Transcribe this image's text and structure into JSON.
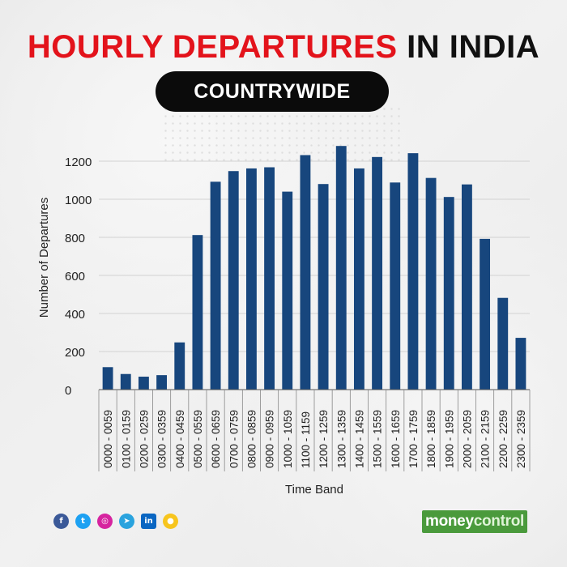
{
  "header": {
    "title_red": "HOURLY DEPARTURES",
    "title_black": "IN INDIA",
    "subtitle": "COUNTRYWIDE"
  },
  "colors": {
    "bar": "#17467d",
    "title_red": "#e3131b",
    "pill": "#0b0b0b",
    "brand_green": "#4a9a3c"
  },
  "footer": {
    "social_icons": [
      "facebook-icon",
      "twitter-icon",
      "instagram-icon",
      "telegram-icon",
      "linkedin-icon",
      "koo-icon"
    ],
    "brand_part1": "money",
    "brand_part2": "control"
  },
  "chart_data": {
    "type": "bar",
    "title": "HOURLY DEPARTURES IN INDIA",
    "subtitle": "COUNTRYWIDE",
    "xlabel": "Time Band",
    "ylabel": "Number of Departures",
    "ylim": [
      0,
      1200
    ],
    "yticks": [
      0,
      200,
      400,
      600,
      800,
      1000,
      1200
    ],
    "grid": true,
    "categories": [
      "0000 - 0059",
      "0100 - 0159",
      "0200 - 0259",
      "0300 - 0359",
      "0400 - 0459",
      "0500 - 0559",
      "0600 - 0659",
      "0700 - 0759",
      "0800 - 0859",
      "0900 - 0959",
      "1000 - 1059",
      "1100 - 1159",
      "1200 - 1259",
      "1300 - 1359",
      "1400 - 1459",
      "1500 - 1559",
      "1600 - 1659",
      "1700 - 1759",
      "1800 - 1859",
      "1900 - 1959",
      "2000 - 2059",
      "2100 - 2159",
      "2200 - 2259",
      "2300 - 2359"
    ],
    "values": [
      118,
      82,
      68,
      76,
      248,
      812,
      1092,
      1148,
      1162,
      1168,
      1040,
      1232,
      1080,
      1280,
      1162,
      1222,
      1088,
      1242,
      1112,
      1012,
      1078,
      792,
      482,
      272
    ]
  }
}
